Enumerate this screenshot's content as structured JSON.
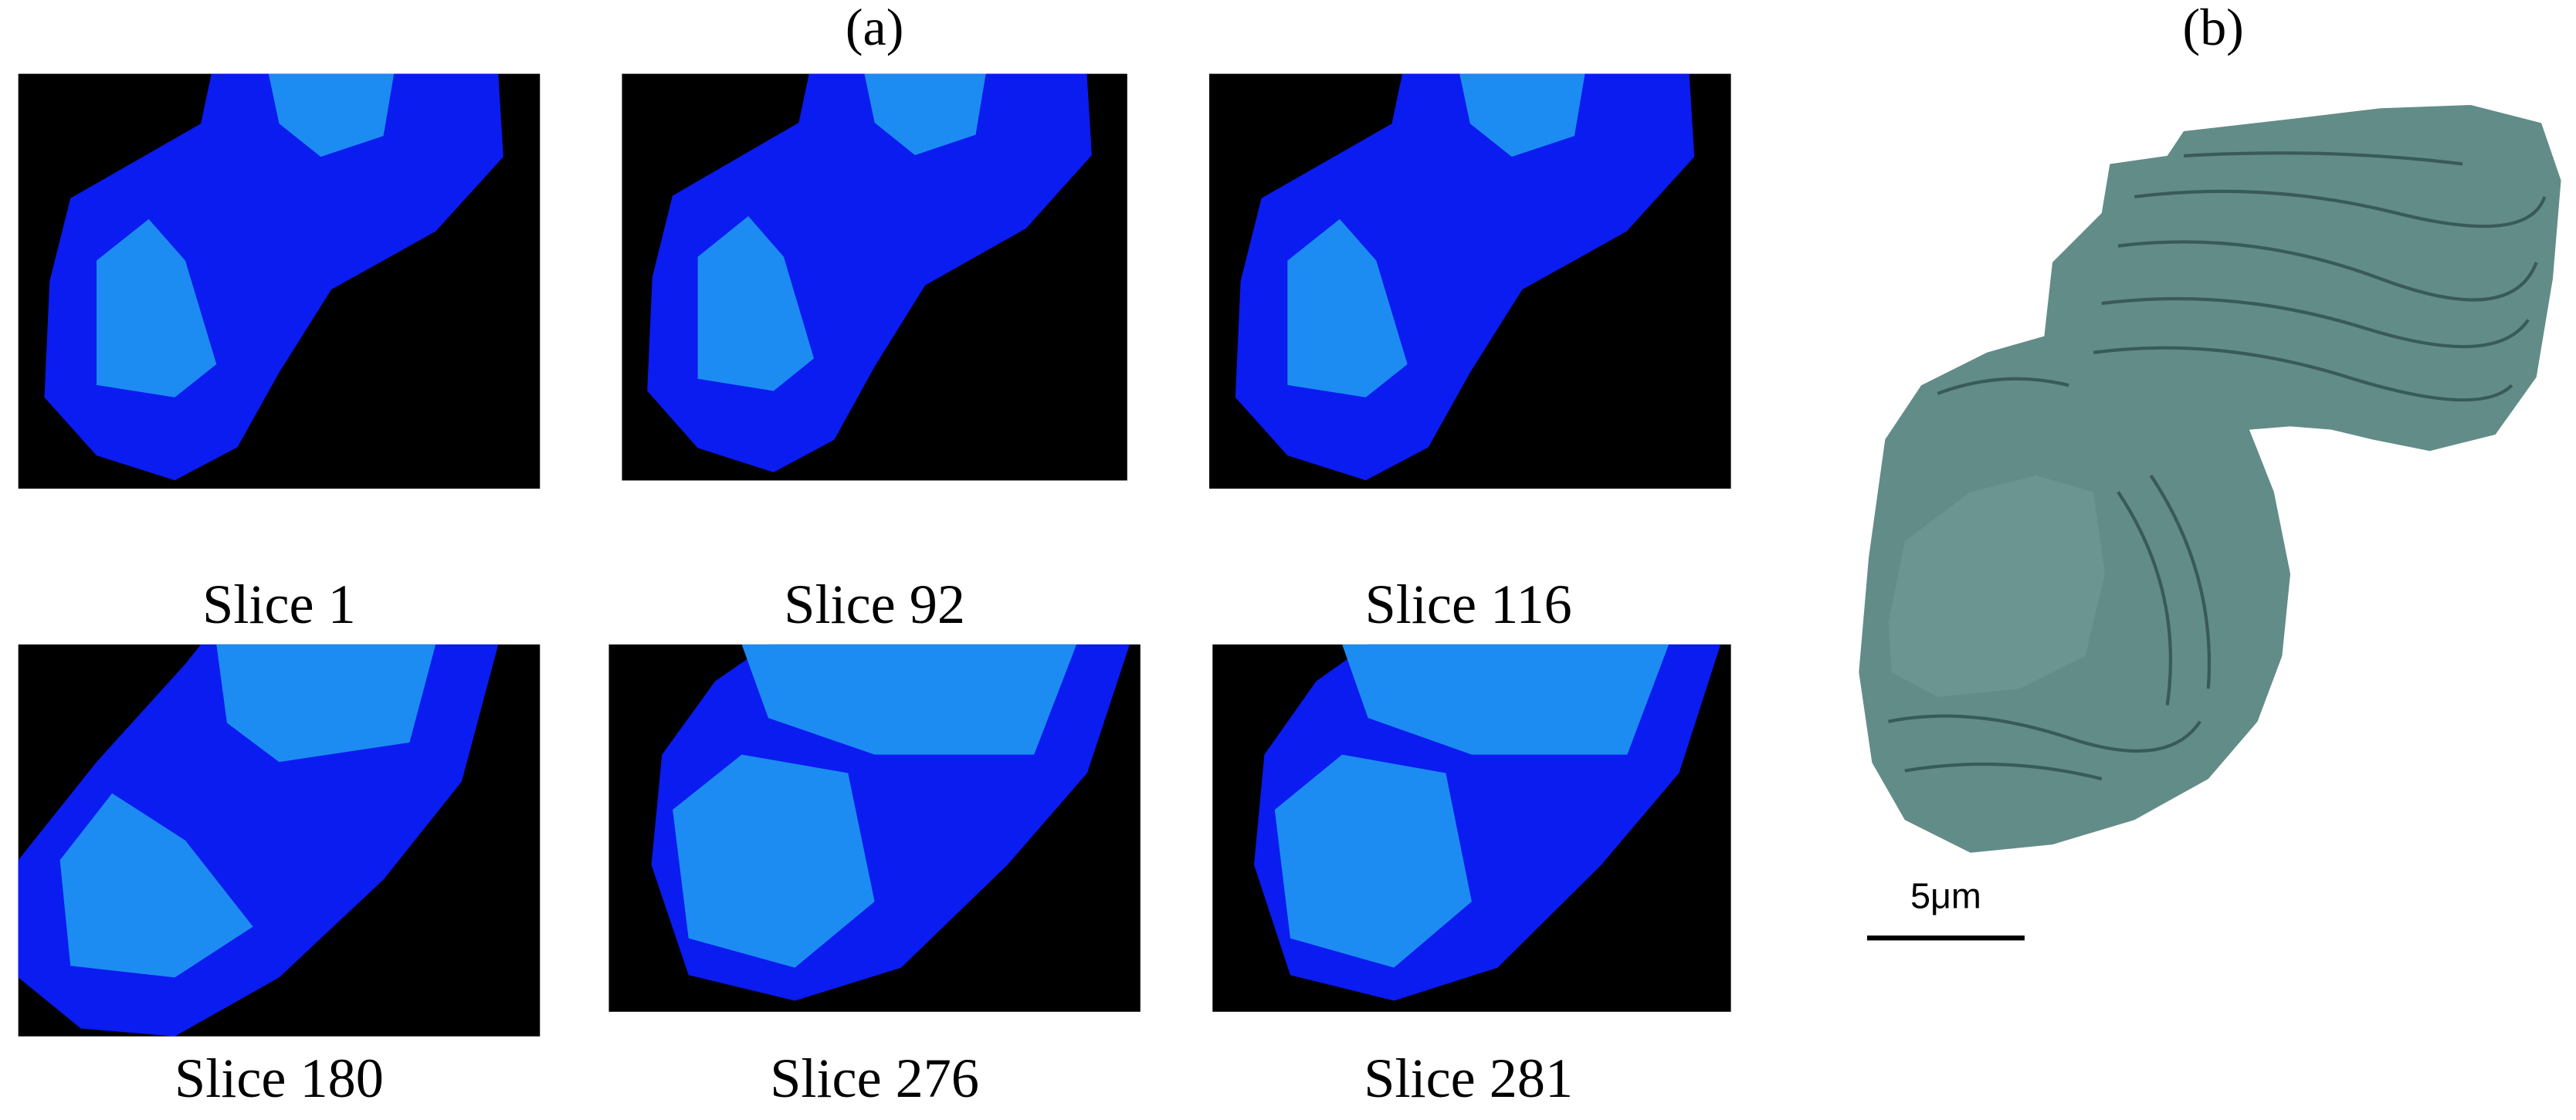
{
  "figure": {
    "panel_a_label": "(a)",
    "panel_b_label": "(b)",
    "slices": [
      {
        "label": "Slice 1"
      },
      {
        "label": "Slice 92"
      },
      {
        "label": "Slice 116"
      },
      {
        "label": "Slice 180"
      },
      {
        "label": "Slice 276"
      },
      {
        "label": "Slice 281"
      }
    ],
    "scale_bar_label": "5μm"
  }
}
